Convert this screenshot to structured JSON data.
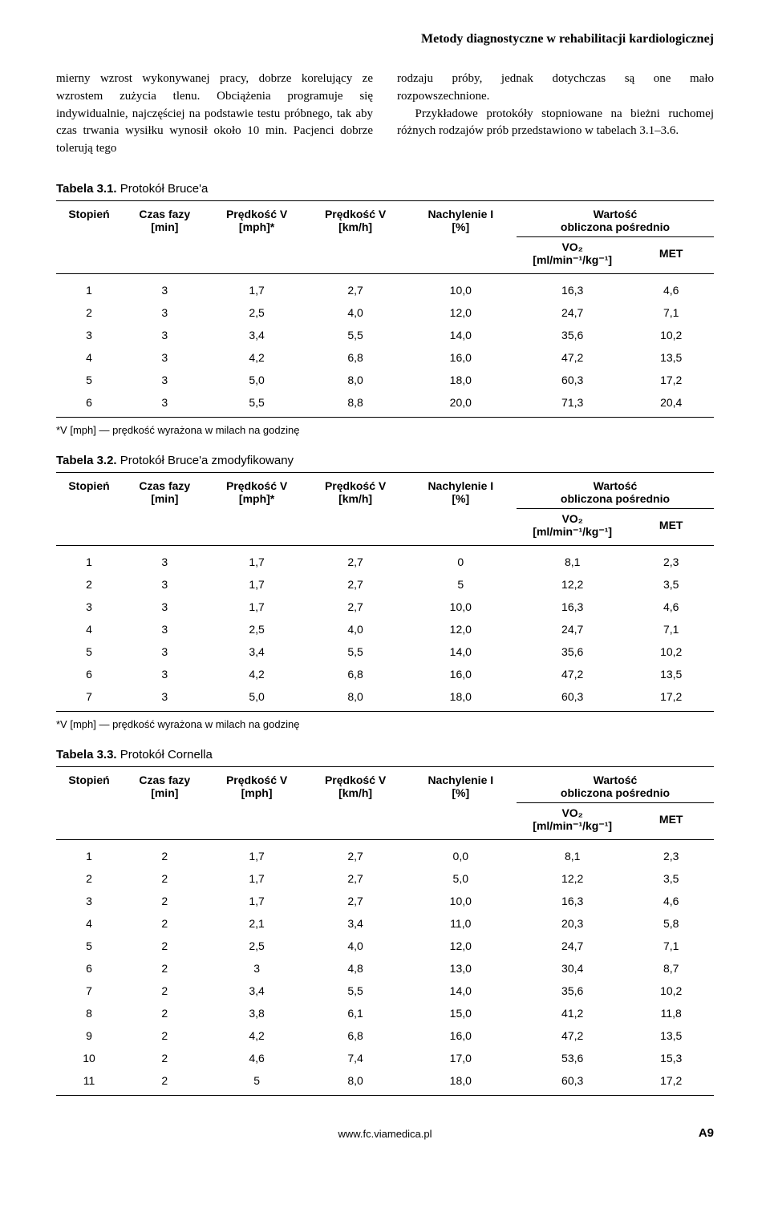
{
  "header": {
    "title": "Metody diagnostyczne w rehabilitacji kardiologicznej"
  },
  "body": {
    "left": "mierny wzrost wykonywanej pracy, dobrze korelujący ze wzrostem zużycia tlenu. Obciążenia programuje się indywidualnie, najczęściej na podstawie testu próbnego, tak aby czas trwania wysiłku wynosił około 10 min. Pacjenci dobrze tolerują tego",
    "right_p1": "rodzaju próby, jednak dotychczas są one mało rozpowszechnione.",
    "right_p2": "Przykładowe protokóły stopniowane na bieżni ruchomej różnych rodzajów prób przedstawiono w tabelach 3.1–3.6."
  },
  "tables": {
    "t1": {
      "label": "Tabela 3.1.",
      "caption": "Protokół Bruce'a",
      "columns": [
        "Stopień",
        "Czas fazy\n[min]",
        "Prędkość V\n[mph]*",
        "Prędkość V\n[km/h]",
        "Nachylenie I\n[%]",
        "Wartość\nobliczona pośrednio"
      ],
      "sub_vo2": "VO₂",
      "sub_vo2_unit": "[ml/min⁻¹/kg⁻¹]",
      "sub_met": "MET",
      "rows": [
        [
          "1",
          "3",
          "1,7",
          "2,7",
          "10,0",
          "16,3",
          "4,6"
        ],
        [
          "2",
          "3",
          "2,5",
          "4,0",
          "12,0",
          "24,7",
          "7,1"
        ],
        [
          "3",
          "3",
          "3,4",
          "5,5",
          "14,0",
          "35,6",
          "10,2"
        ],
        [
          "4",
          "3",
          "4,2",
          "6,8",
          "16,0",
          "47,2",
          "13,5"
        ],
        [
          "5",
          "3",
          "5,0",
          "8,0",
          "18,0",
          "60,3",
          "17,2"
        ],
        [
          "6",
          "3",
          "5,5",
          "8,8",
          "20,0",
          "71,3",
          "20,4"
        ]
      ],
      "footnote": "*V [mph] — prędkość wyrażona w milach na godzinę"
    },
    "t2": {
      "label": "Tabela 3.2.",
      "caption": "Protokół Bruce'a zmodyfikowany",
      "rows": [
        [
          "1",
          "3",
          "1,7",
          "2,7",
          "0",
          "8,1",
          "2,3"
        ],
        [
          "2",
          "3",
          "1,7",
          "2,7",
          "5",
          "12,2",
          "3,5"
        ],
        [
          "3",
          "3",
          "1,7",
          "2,7",
          "10,0",
          "16,3",
          "4,6"
        ],
        [
          "4",
          "3",
          "2,5",
          "4,0",
          "12,0",
          "24,7",
          "7,1"
        ],
        [
          "5",
          "3",
          "3,4",
          "5,5",
          "14,0",
          "35,6",
          "10,2"
        ],
        [
          "6",
          "3",
          "4,2",
          "6,8",
          "16,0",
          "47,2",
          "13,5"
        ],
        [
          "7",
          "3",
          "5,0",
          "8,0",
          "18,0",
          "60,3",
          "17,2"
        ]
      ],
      "footnote": "*V [mph] — prędkość wyrażona w milach na godzinę"
    },
    "t3": {
      "label": "Tabela 3.3.",
      "caption": "Protokół Cornella",
      "col3": "Prędkość V\n[mph]",
      "rows": [
        [
          "1",
          "2",
          "1,7",
          "2,7",
          "0,0",
          "8,1",
          "2,3"
        ],
        [
          "2",
          "2",
          "1,7",
          "2,7",
          "5,0",
          "12,2",
          "3,5"
        ],
        [
          "3",
          "2",
          "1,7",
          "2,7",
          "10,0",
          "16,3",
          "4,6"
        ],
        [
          "4",
          "2",
          "2,1",
          "3,4",
          "11,0",
          "20,3",
          "5,8"
        ],
        [
          "5",
          "2",
          "2,5",
          "4,0",
          "12,0",
          "24,7",
          "7,1"
        ],
        [
          "6",
          "2",
          "3",
          "4,8",
          "13,0",
          "30,4",
          "8,7"
        ],
        [
          "7",
          "2",
          "3,4",
          "5,5",
          "14,0",
          "35,6",
          "10,2"
        ],
        [
          "8",
          "2",
          "3,8",
          "6,1",
          "15,0",
          "41,2",
          "11,8"
        ],
        [
          "9",
          "2",
          "4,2",
          "6,8",
          "16,0",
          "47,2",
          "13,5"
        ],
        [
          "10",
          "2",
          "4,6",
          "7,4",
          "17,0",
          "53,6",
          "15,3"
        ],
        [
          "11",
          "2",
          "5",
          "8,0",
          "18,0",
          "60,3",
          "17,2"
        ]
      ]
    }
  },
  "footer": {
    "url": "www.fc.viamedica.pl",
    "page": "A9"
  },
  "style": {
    "col_widths_pct": [
      10,
      13,
      15,
      15,
      17,
      17,
      13
    ]
  }
}
